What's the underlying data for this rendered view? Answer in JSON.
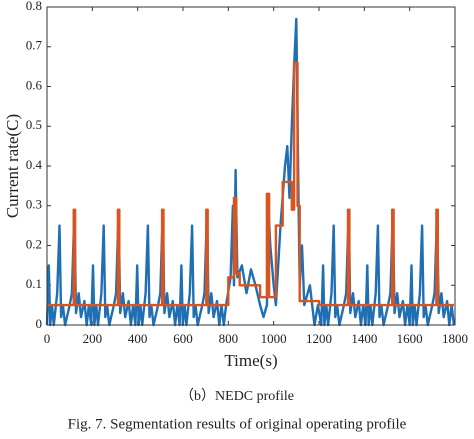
{
  "chart_data": {
    "type": "line",
    "xlabel": "Time(s)",
    "ylabel": "Current rate(C)",
    "subtitle": "（b）NEDC profile",
    "caption": "Fig. 7.   Segmentation results of original operating profile",
    "xlim": [
      0,
      1800
    ],
    "xticks": [
      0,
      200,
      400,
      600,
      800,
      1000,
      1200,
      1400,
      1600,
      1800
    ],
    "ylim": [
      0,
      0.8
    ],
    "yticks": [
      0,
      0.1,
      0.2,
      0.3,
      0.4,
      0.5,
      0.6,
      0.7,
      0.8
    ],
    "grid": false,
    "series": [
      {
        "color": "#1f6fb5",
        "x": [
          0,
          8,
          14,
          22,
          30,
          45,
          55,
          62,
          70,
          80,
          100,
          110,
          121,
          128,
          140,
          150,
          165,
          175,
          185,
          195,
          203,
          209,
          217,
          225,
          240,
          250,
          257,
          265,
          275,
          295,
          305,
          316,
          323,
          335,
          345,
          360,
          370,
          380,
          390,
          398,
          404,
          412,
          420,
          435,
          445,
          452,
          460,
          470,
          490,
          500,
          511,
          518,
          530,
          540,
          555,
          565,
          575,
          585,
          593,
          599,
          607,
          615,
          630,
          640,
          647,
          655,
          665,
          685,
          695,
          706,
          713,
          725,
          735,
          750,
          760,
          770,
          780,
          790,
          810,
          820,
          825,
          832,
          840,
          860,
          880,
          900,
          920,
          940,
          955,
          970,
          978,
          985,
          1000,
          1010,
          1030,
          1050,
          1060,
          1070,
          1080,
          1090,
          1100,
          1110,
          1115,
          1125,
          1135,
          1160,
          1180,
          1195,
          1210,
          1218,
          1224,
          1232,
          1240,
          1255,
          1265,
          1272,
          1280,
          1290,
          1310,
          1320,
          1331,
          1338,
          1350,
          1360,
          1375,
          1385,
          1395,
          1405,
          1413,
          1419,
          1427,
          1435,
          1450,
          1460,
          1467,
          1475,
          1485,
          1505,
          1515,
          1526,
          1533,
          1545,
          1555,
          1570,
          1580,
          1590,
          1600,
          1608,
          1614,
          1622,
          1630,
          1645,
          1655,
          1662,
          1670,
          1680,
          1700,
          1710,
          1721,
          1728,
          1740,
          1750,
          1765,
          1775,
          1785,
          1795
        ],
        "values": [
          0,
          0.15,
          0,
          0.05,
          0,
          0.08,
          0.25,
          0.02,
          0.05,
          0,
          0.05,
          0.08,
          0.29,
          0.03,
          0.08,
          0.02,
          0.06,
          0,
          0.05,
          0,
          0.15,
          0,
          0.05,
          0,
          0.08,
          0.25,
          0.02,
          0.05,
          0,
          0.05,
          0.08,
          0.29,
          0.03,
          0.08,
          0.02,
          0.06,
          0,
          0.05,
          0,
          0.15,
          0,
          0.05,
          0,
          0.08,
          0.25,
          0.02,
          0.05,
          0,
          0.05,
          0.08,
          0.29,
          0.03,
          0.08,
          0.02,
          0.06,
          0,
          0.05,
          0,
          0.15,
          0,
          0.05,
          0,
          0.08,
          0.25,
          0.02,
          0.05,
          0,
          0.05,
          0.08,
          0.29,
          0.03,
          0.08,
          0.02,
          0.06,
          0,
          0.05,
          0,
          0.05,
          0.12,
          0.3,
          0.1,
          0.39,
          0.12,
          0.15,
          0.08,
          0.14,
          0.1,
          0.05,
          0.02,
          0.05,
          0.28,
          0.2,
          0.1,
          0.05,
          0.25,
          0.4,
          0.45,
          0.32,
          0.5,
          0.65,
          0.77,
          0.3,
          0.1,
          0.2,
          0.05,
          0.1,
          0,
          0.05,
          0,
          0.15,
          0,
          0.05,
          0,
          0.08,
          0.25,
          0.02,
          0.05,
          0,
          0.05,
          0.08,
          0.29,
          0.03,
          0.08,
          0.02,
          0.06,
          0,
          0.05,
          0,
          0.15,
          0,
          0.05,
          0,
          0.08,
          0.25,
          0.02,
          0.05,
          0,
          0.05,
          0.08,
          0.29,
          0.03,
          0.08,
          0.02,
          0.06,
          0,
          0.05,
          0,
          0.15,
          0,
          0.05,
          0,
          0.08,
          0.25,
          0.02,
          0.05,
          0,
          0.05,
          0.08,
          0.29,
          0.03,
          0.08,
          0.02,
          0.06,
          0,
          0.05,
          0
        ]
      },
      {
        "color": "#d9541e",
        "x": [
          0,
          118,
          118,
          124,
          124,
          313,
          313,
          319,
          319,
          508,
          508,
          514,
          514,
          703,
          703,
          709,
          709,
          800,
          800,
          825,
          825,
          835,
          835,
          850,
          850,
          940,
          940,
          970,
          970,
          980,
          980,
          1010,
          1010,
          1040,
          1040,
          1080,
          1080,
          1090,
          1090,
          1105,
          1105,
          1115,
          1115,
          1200,
          1200,
          1328,
          1328,
          1334,
          1334,
          1523,
          1523,
          1529,
          1529,
          1718,
          1718,
          1724,
          1724,
          1795
        ],
        "values": [
          0.05,
          0.05,
          0.29,
          0.29,
          0.05,
          0.05,
          0.29,
          0.29,
          0.05,
          0.05,
          0.29,
          0.29,
          0.05,
          0.05,
          0.29,
          0.29,
          0.05,
          0.05,
          0.12,
          0.12,
          0.32,
          0.32,
          0.13,
          0.13,
          0.1,
          0.1,
          0.07,
          0.07,
          0.33,
          0.33,
          0.07,
          0.07,
          0.25,
          0.25,
          0.36,
          0.36,
          0.29,
          0.29,
          0.66,
          0.66,
          0.3,
          0.3,
          0.06,
          0.06,
          0.05,
          0.05,
          0.29,
          0.29,
          0.05,
          0.05,
          0.29,
          0.29,
          0.05,
          0.05,
          0.29,
          0.29,
          0.05,
          0.05
        ]
      }
    ]
  }
}
